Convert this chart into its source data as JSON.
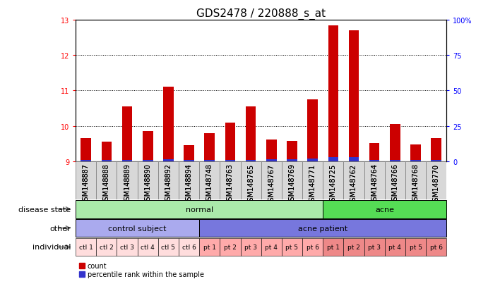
{
  "title": "GDS2478 / 220888_s_at",
  "samples": [
    "GSM148887",
    "GSM148888",
    "GSM148889",
    "GSM148890",
    "GSM148892",
    "GSM148894",
    "GSM148748",
    "GSM148763",
    "GSM148765",
    "GSM148767",
    "GSM148769",
    "GSM148771",
    "GSM148725",
    "GSM148762",
    "GSM148764",
    "GSM148766",
    "GSM148768",
    "GSM148770"
  ],
  "count_values": [
    9.65,
    9.55,
    10.55,
    9.85,
    11.1,
    9.45,
    9.8,
    10.1,
    10.55,
    9.62,
    9.58,
    10.75,
    12.85,
    12.7,
    9.52,
    10.05,
    9.48,
    9.65
  ],
  "percentile_values": [
    0.04,
    0.04,
    0.04,
    0.04,
    0.06,
    0.04,
    0.04,
    0.04,
    0.04,
    0.06,
    0.06,
    0.08,
    0.12,
    0.12,
    0.04,
    0.04,
    0.04,
    0.04
  ],
  "bar_base": 9.0,
  "ylim": [
    9.0,
    13.0
  ],
  "yticks": [
    9,
    10,
    11,
    12,
    13
  ],
  "y2ticks": [
    0,
    25,
    50,
    75,
    100
  ],
  "y2ticklabels": [
    "0",
    "25",
    "50",
    "75",
    "100%"
  ],
  "normal_color": "#AAEAAA",
  "acne_ds_color": "#55DD55",
  "ctrl_color": "#AAAAEE",
  "acne_pt_color": "#7777DD",
  "ind_ctl_color": "#FFDDDD",
  "ind_pt_normal_color": "#FFAAAA",
  "ind_pt_acne_color": "#EE8888",
  "bar_color_red": "#CC0000",
  "bar_color_blue": "#3333CC",
  "bg_color": "#FFFFFF",
  "bar_width": 0.5,
  "label_fontsize": 7,
  "tick_fontsize": 7,
  "title_fontsize": 11,
  "row_label_fontsize": 8,
  "annotation_fontsize": 8
}
